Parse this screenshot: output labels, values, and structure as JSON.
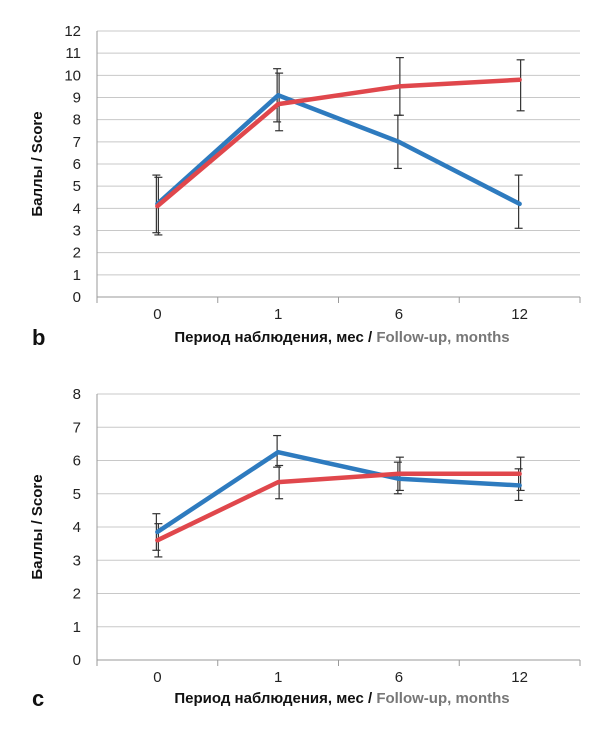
{
  "colors": {
    "blue": "#2e7bbf",
    "red": "#e0474c",
    "grid": "#c8c8c8",
    "errorbar": "#333333"
  },
  "chart_data": [
    {
      "panel_label": "b",
      "type": "line",
      "x": [
        "0",
        "1",
        "6",
        "12"
      ],
      "ylim": [
        0,
        12
      ],
      "yticks": [
        "0",
        "1",
        "2",
        "3",
        "4",
        "5",
        "6",
        "7",
        "8",
        "9",
        "10",
        "11",
        "12"
      ],
      "ylabel": "Баллы / Score",
      "xlabel_ru": "Период наблюдения, мес",
      "xlabel_sep": " / ",
      "xlabel_en": "Follow-up, months",
      "grid": true,
      "series": [
        {
          "color": "#2e7bbf",
          "values": [
            4.2,
            9.1,
            7.0,
            4.2
          ],
          "error_low": [
            2.9,
            7.9,
            5.8,
            3.1
          ],
          "error_high": [
            5.5,
            10.3,
            8.2,
            5.5
          ]
        },
        {
          "color": "#e0474c",
          "values": [
            4.1,
            8.7,
            9.5,
            9.8
          ],
          "error_low": [
            2.8,
            7.5,
            8.2,
            8.4
          ],
          "error_high": [
            5.4,
            10.1,
            10.8,
            10.7
          ]
        }
      ]
    },
    {
      "panel_label": "c",
      "type": "line",
      "x": [
        "0",
        "1",
        "6",
        "12"
      ],
      "ylim": [
        0,
        8
      ],
      "yticks": [
        "0",
        "1",
        "2",
        "3",
        "4",
        "5",
        "6",
        "7",
        "8"
      ],
      "ylabel": "Баллы / Score",
      "xlabel_ru": "Период наблюдения, мес",
      "xlabel_sep": " / ",
      "xlabel_en": "Follow-up, months",
      "grid": true,
      "series": [
        {
          "color": "#2e7bbf",
          "values": [
            3.85,
            6.25,
            5.45,
            5.25
          ],
          "error_low": [
            3.3,
            5.8,
            5.0,
            4.8
          ],
          "error_high": [
            4.4,
            6.75,
            5.95,
            5.75
          ]
        },
        {
          "color": "#e0474c",
          "values": [
            3.6,
            5.35,
            5.6,
            5.6
          ],
          "error_low": [
            3.1,
            4.85,
            5.1,
            5.1
          ],
          "error_high": [
            4.1,
            5.85,
            6.1,
            6.1
          ]
        }
      ]
    }
  ]
}
